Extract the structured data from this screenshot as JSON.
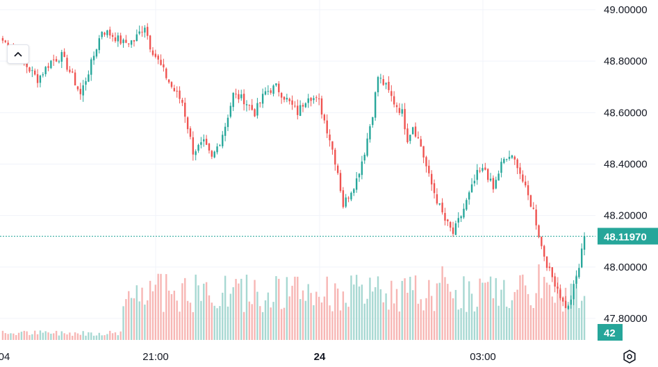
{
  "chart_data": {
    "type": "candlestick",
    "price_axis": {
      "ticks": [
        "49.00000",
        "48.80000",
        "48.60000",
        "48.40000",
        "48.20000",
        "48.00000",
        "47.80000"
      ],
      "tick_values": [
        49.0,
        48.8,
        48.6,
        48.4,
        48.2,
        48.0,
        47.8
      ],
      "range": [
        47.73,
        49.05
      ]
    },
    "time_axis": {
      "labels": [
        {
          "text": "04",
          "bold": false
        },
        {
          "text": "21:00",
          "bold": false
        },
        {
          "text": "24",
          "bold": true
        },
        {
          "text": "03:00",
          "bold": false
        }
      ]
    },
    "last_price": {
      "value": 48.1197,
      "label": "48.11970"
    },
    "volume_label": "42",
    "anchors": [
      [
        0,
        48.88
      ],
      [
        5,
        48.84
      ],
      [
        9,
        48.78
      ],
      [
        13,
        48.73
      ],
      [
        18,
        48.8
      ],
      [
        22,
        48.82
      ],
      [
        26,
        48.74
      ],
      [
        29,
        48.67
      ],
      [
        33,
        48.79
      ],
      [
        37,
        48.92
      ],
      [
        41,
        48.9
      ],
      [
        45,
        48.87
      ],
      [
        49,
        48.88
      ],
      [
        53,
        48.94
      ],
      [
        55,
        48.86
      ],
      [
        59,
        48.78
      ],
      [
        63,
        48.7
      ],
      [
        67,
        48.64
      ],
      [
        71,
        48.45
      ],
      [
        75,
        48.48
      ],
      [
        78,
        48.42
      ],
      [
        81,
        48.49
      ],
      [
        83,
        48.55
      ],
      [
        86,
        48.67
      ],
      [
        90,
        48.65
      ],
      [
        94,
        48.6
      ],
      [
        98,
        48.68
      ],
      [
        102,
        48.7
      ],
      [
        106,
        48.65
      ],
      [
        110,
        48.6
      ],
      [
        114,
        48.67
      ],
      [
        118,
        48.64
      ],
      [
        122,
        48.5
      ],
      [
        125,
        48.37
      ],
      [
        127,
        48.24
      ],
      [
        129,
        48.28
      ],
      [
        132,
        48.34
      ],
      [
        135,
        48.45
      ],
      [
        138,
        48.6
      ],
      [
        140,
        48.74
      ],
      [
        143,
        48.7
      ],
      [
        146,
        48.64
      ],
      [
        149,
        48.6
      ],
      [
        151,
        48.5
      ],
      [
        153,
        48.55
      ],
      [
        156,
        48.47
      ],
      [
        159,
        48.35
      ],
      [
        162,
        48.26
      ],
      [
        165,
        48.18
      ],
      [
        168,
        48.13
      ],
      [
        171,
        48.2
      ],
      [
        174,
        48.28
      ],
      [
        177,
        48.36
      ],
      [
        180,
        48.38
      ],
      [
        183,
        48.3
      ],
      [
        186,
        48.4
      ],
      [
        189,
        48.43
      ],
      [
        192,
        48.4
      ],
      [
        195,
        48.3
      ],
      [
        198,
        48.22
      ],
      [
        201,
        48.08
      ],
      [
        204,
        47.98
      ],
      [
        207,
        47.92
      ],
      [
        209,
        47.86
      ],
      [
        211,
        47.84
      ],
      [
        213,
        47.92
      ],
      [
        215,
        48.0
      ],
      [
        217,
        48.12
      ]
    ],
    "candle_count": 218,
    "colors": {
      "up": "#26a69a",
      "down": "#ef5350",
      "volume_up": "#a7d8d2",
      "volume_down": "#f7b6b4"
    }
  },
  "controls": {
    "collapse_icon": "chevron-up-icon",
    "settings_icon": "settings-icon"
  }
}
